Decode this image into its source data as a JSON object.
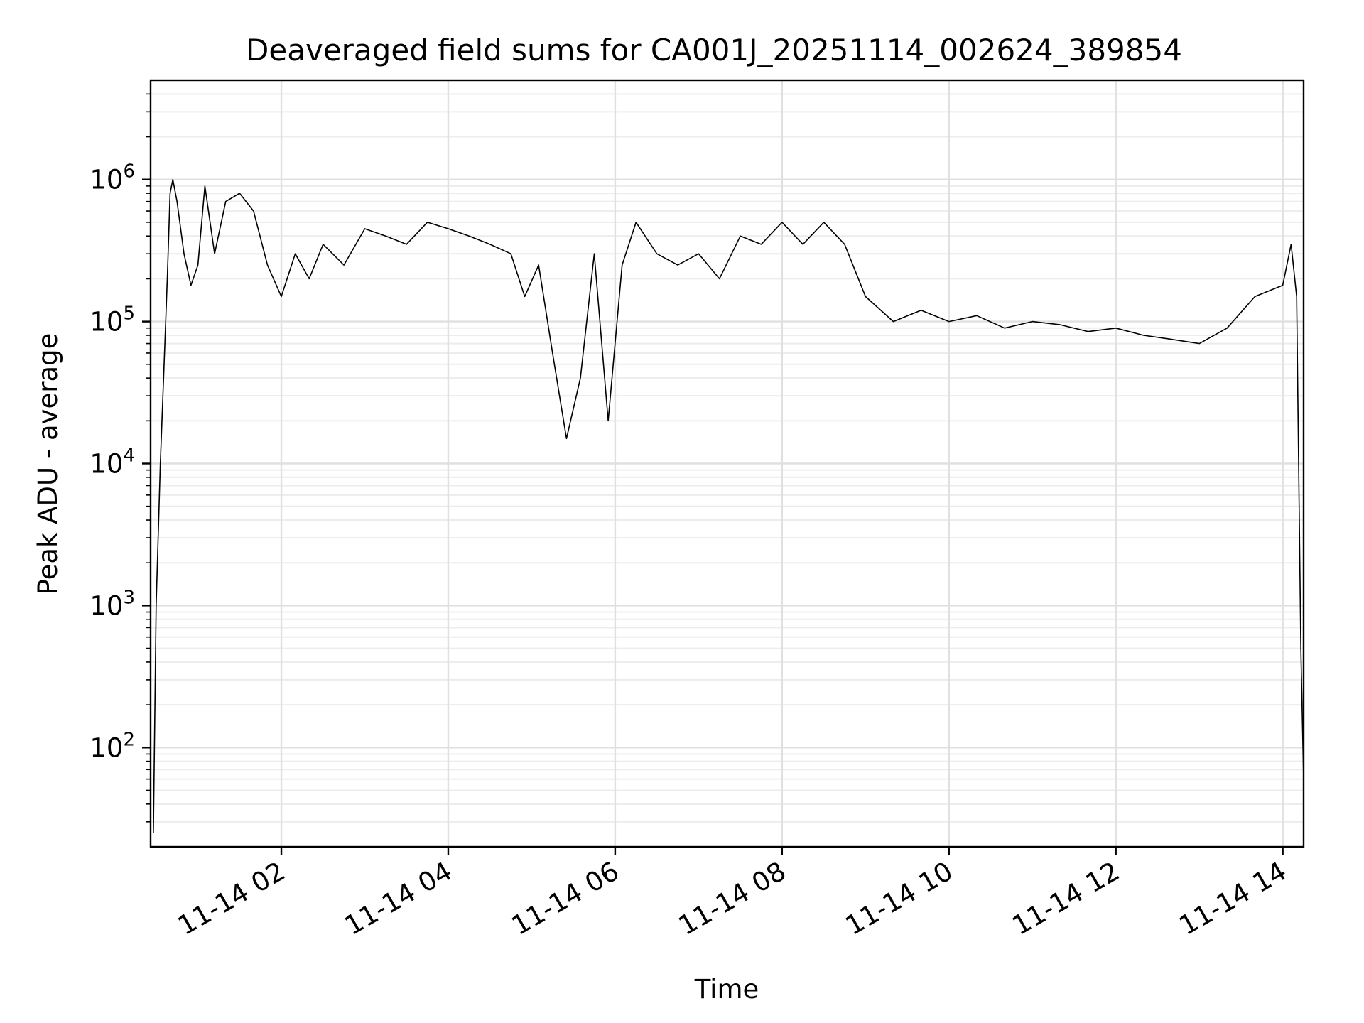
{
  "chart_data": {
    "type": "line",
    "title": "Deaveraged field sums for CA001J_20251114_002624_389854",
    "xlabel": "Time",
    "ylabel": "Peak ADU - average",
    "yscale": "log",
    "ylim": [
      20,
      5000000
    ],
    "xlim": [
      "2025-11-14 00:26",
      "2025-11-14 14:15"
    ],
    "grid": true,
    "line_color": "#000000",
    "x_ticks": [
      {
        "value": "2025-11-14 02:00",
        "label": "11-14 02"
      },
      {
        "value": "2025-11-14 04:00",
        "label": "11-14 04"
      },
      {
        "value": "2025-11-14 06:00",
        "label": "11-14 06"
      },
      {
        "value": "2025-11-14 08:00",
        "label": "11-14 08"
      },
      {
        "value": "2025-11-14 10:00",
        "label": "11-14 10"
      },
      {
        "value": "2025-11-14 12:00",
        "label": "11-14 12"
      },
      {
        "value": "2025-11-14 14:00",
        "label": "11-14 14"
      }
    ],
    "y_ticks": [
      {
        "value": 100,
        "base": "10",
        "exp": "2"
      },
      {
        "value": 1000,
        "base": "10",
        "exp": "3"
      },
      {
        "value": 10000,
        "base": "10",
        "exp": "4"
      },
      {
        "value": 100000,
        "base": "10",
        "exp": "5"
      },
      {
        "value": 1000000,
        "base": "10",
        "exp": "6"
      }
    ],
    "series": [
      {
        "values_note_free": true,
        "x": [
          "2025-11-14 00:28",
          "2025-11-14 00:30",
          "2025-11-14 00:33",
          "2025-11-14 00:36",
          "2025-11-14 00:38",
          "2025-11-14 00:40",
          "2025-11-14 00:42",
          "2025-11-14 00:45",
          "2025-11-14 00:50",
          "2025-11-14 00:55",
          "2025-11-14 01:00",
          "2025-11-14 01:05",
          "2025-11-14 01:12",
          "2025-11-14 01:20",
          "2025-11-14 01:30",
          "2025-11-14 01:40",
          "2025-11-14 01:50",
          "2025-11-14 02:00",
          "2025-11-14 02:10",
          "2025-11-14 02:20",
          "2025-11-14 02:30",
          "2025-11-14 02:45",
          "2025-11-14 03:00",
          "2025-11-14 03:15",
          "2025-11-14 03:30",
          "2025-11-14 03:45",
          "2025-11-14 04:00",
          "2025-11-14 04:15",
          "2025-11-14 04:30",
          "2025-11-14 04:45",
          "2025-11-14 04:55",
          "2025-11-14 05:05",
          "2025-11-14 05:15",
          "2025-11-14 05:25",
          "2025-11-14 05:35",
          "2025-11-14 05:45",
          "2025-11-14 05:55",
          "2025-11-14 06:05",
          "2025-11-14 06:15",
          "2025-11-14 06:30",
          "2025-11-14 06:45",
          "2025-11-14 07:00",
          "2025-11-14 07:15",
          "2025-11-14 07:30",
          "2025-11-14 07:45",
          "2025-11-14 08:00",
          "2025-11-14 08:15",
          "2025-11-14 08:30",
          "2025-11-14 08:45",
          "2025-11-14 09:00",
          "2025-11-14 09:20",
          "2025-11-14 09:40",
          "2025-11-14 10:00",
          "2025-11-14 10:20",
          "2025-11-14 10:40",
          "2025-11-14 11:00",
          "2025-11-14 11:20",
          "2025-11-14 11:40",
          "2025-11-14 12:00",
          "2025-11-14 12:20",
          "2025-11-14 12:40",
          "2025-11-14 13:00",
          "2025-11-14 13:20",
          "2025-11-14 13:40",
          "2025-11-14 14:00",
          "2025-11-14 14:06",
          "2025-11-14 14:10",
          "2025-11-14 14:13",
          "2025-11-14 14:15"
        ],
        "y": [
          25,
          1000,
          10000,
          60000,
          200000,
          800000,
          1000000,
          700000,
          300000,
          180000,
          250000,
          900000,
          300000,
          700000,
          800000,
          600000,
          250000,
          150000,
          300000,
          200000,
          350000,
          250000,
          450000,
          400000,
          350000,
          500000,
          450000,
          400000,
          350000,
          300000,
          150000,
          250000,
          60000,
          15000,
          40000,
          300000,
          20000,
          250000,
          500000,
          300000,
          250000,
          300000,
          200000,
          400000,
          350000,
          500000,
          350000,
          500000,
          350000,
          150000,
          100000,
          120000,
          100000,
          110000,
          90000,
          100000,
          95000,
          85000,
          90000,
          80000,
          75000,
          70000,
          90000,
          150000,
          180000,
          350000,
          150000,
          500,
          60
        ]
      }
    ]
  }
}
